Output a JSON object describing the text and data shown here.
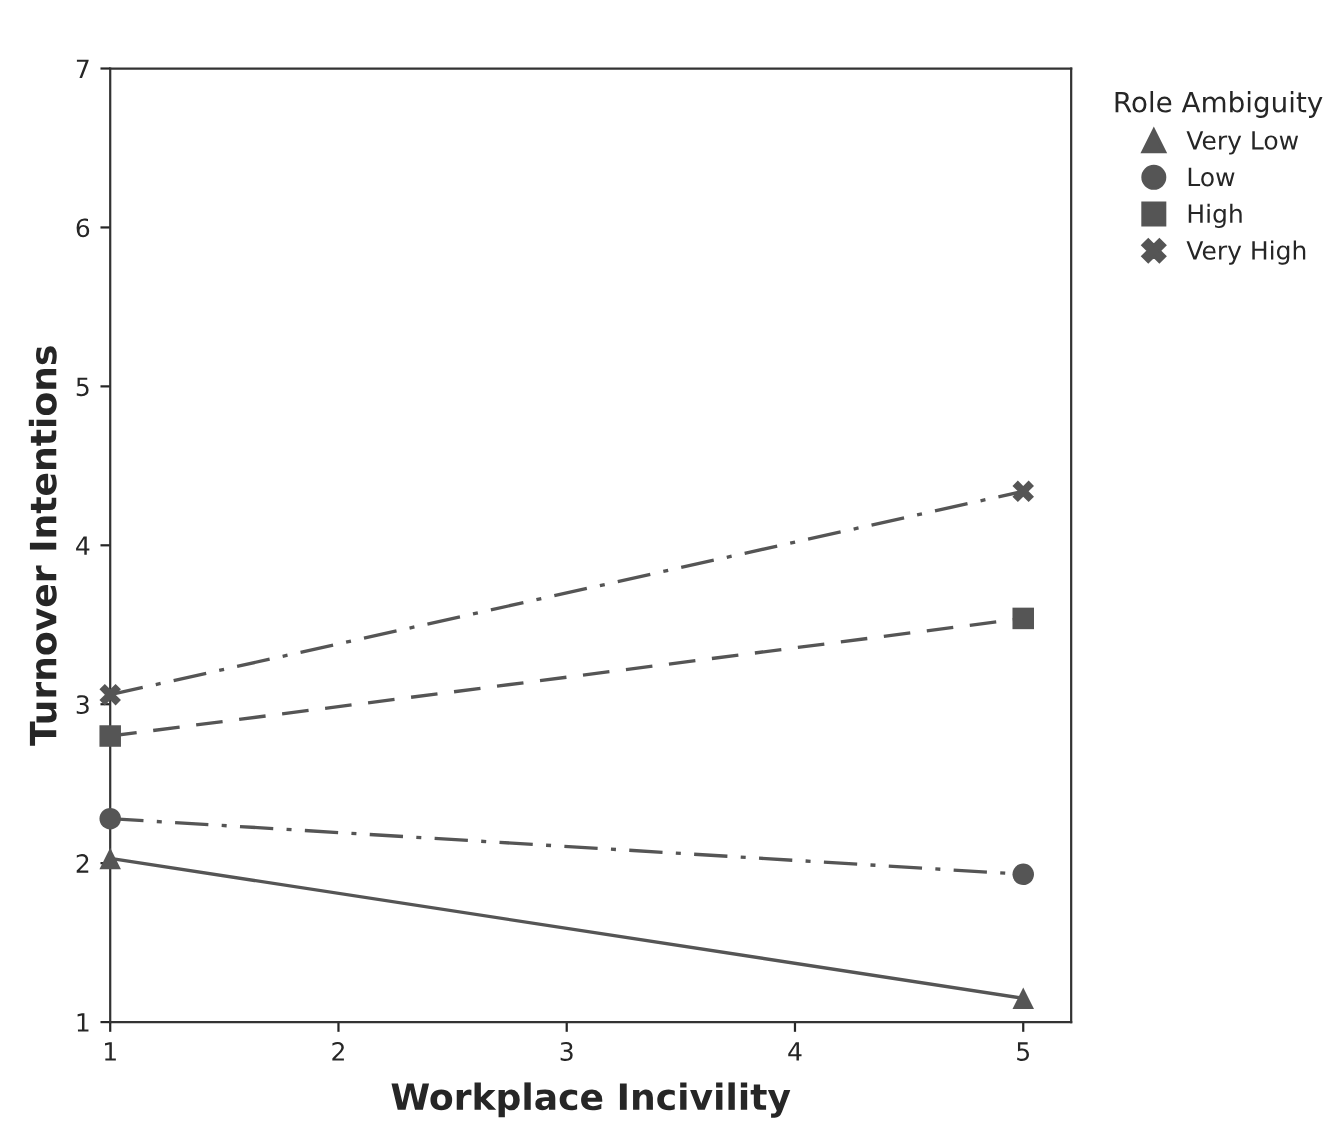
{
  "chart_data": {
    "type": "line",
    "xlabel": "Workplace Incivility",
    "ylabel": "Turnover Intentions",
    "legend_title": "Role Ambiguity",
    "legend": "top right",
    "x": [
      1,
      5
    ],
    "xlim": [
      1,
      5.21
    ],
    "xticks": [
      1,
      2,
      3,
      4,
      5
    ],
    "ylim": [
      1,
      7
    ],
    "yticks": [
      1,
      2,
      3,
      4,
      5,
      6,
      7
    ],
    "grid": false,
    "series": [
      {
        "name": "Very Low",
        "color": "#555555",
        "values": [
          2.03,
          1.15
        ],
        "marker": "triangle",
        "line_style": "solid"
      },
      {
        "name": "Low",
        "color": "#555555",
        "values": [
          2.28,
          1.93
        ],
        "marker": "circle",
        "line_style": "dashdot"
      },
      {
        "name": "High",
        "color": "#555555",
        "values": [
          2.8,
          3.54
        ],
        "marker": "square",
        "line_style": "dashed"
      },
      {
        "name": "Very High",
        "color": "#555555",
        "values": [
          3.06,
          4.34
        ],
        "marker": "cross",
        "line_style": "dashdot"
      }
    ]
  }
}
